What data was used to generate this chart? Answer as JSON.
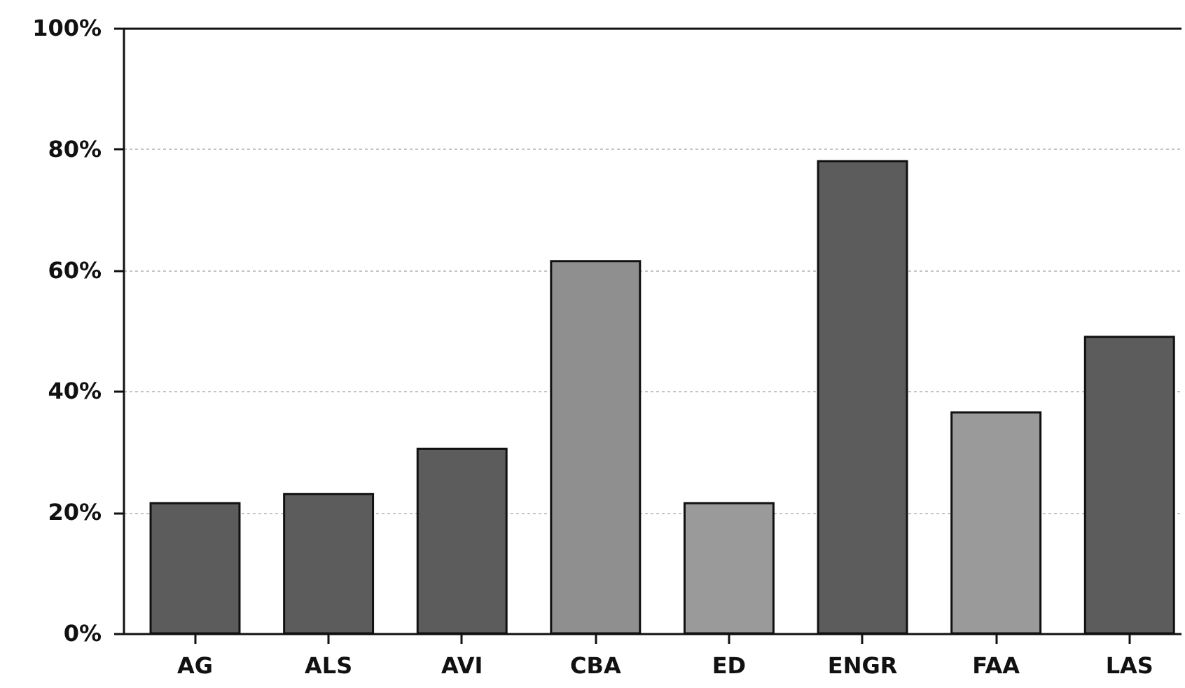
{
  "chart_data": {
    "type": "bar",
    "categories": [
      "AG",
      "ALS",
      "AVI",
      "CBA",
      "ED",
      "ENGR",
      "FAA",
      "LAS"
    ],
    "values": [
      21.5,
      23,
      30.5,
      61.5,
      21.5,
      78,
      36.5,
      49
    ],
    "colors": [
      "#5c5c5c",
      "#5c5c5c",
      "#5c5c5c",
      "#8f8f8f",
      "#9a9a9a",
      "#5c5c5c",
      "#9a9a9a",
      "#5c5c5c"
    ],
    "ylim": [
      0,
      100
    ],
    "yticks": [
      {
        "value": 0,
        "label": "0%"
      },
      {
        "value": 20,
        "label": "20%"
      },
      {
        "value": 40,
        "label": "40%"
      },
      {
        "value": 60,
        "label": "60%"
      },
      {
        "value": 80,
        "label": "80%"
      },
      {
        "value": 100,
        "label": "100%"
      }
    ],
    "grid": "y"
  }
}
